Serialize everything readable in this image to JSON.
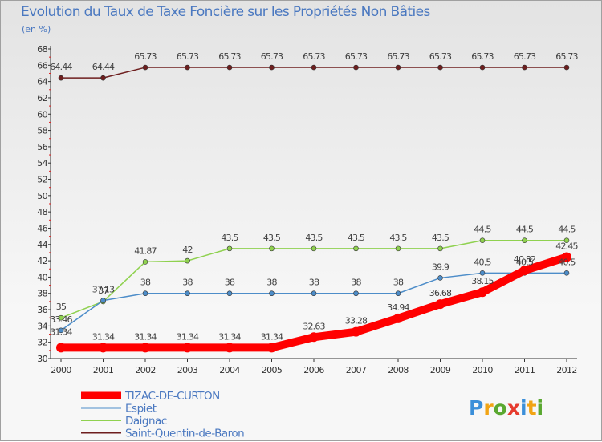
{
  "chart_data": {
    "type": "line",
    "title": "Evolution du Taux de Taxe Foncière sur les Propriétés Non Bâties",
    "unit_label": "(en %)",
    "x": [
      "2000",
      "2001",
      "2002",
      "2003",
      "2004",
      "2005",
      "2006",
      "2007",
      "2008",
      "2009",
      "2010",
      "2011",
      "2012"
    ],
    "ylim": [
      30,
      68
    ],
    "yticks": [
      30,
      32,
      34,
      36,
      38,
      40,
      42,
      44,
      46,
      48,
      50,
      52,
      54,
      56,
      58,
      60,
      62,
      64,
      66,
      68
    ],
    "grid": false,
    "legend_position": "bottom-left",
    "series": [
      {
        "name": "TIZAC-DE-CURTON",
        "color": "#ff0000",
        "values": [
          31.34,
          31.34,
          31.34,
          31.34,
          31.34,
          31.34,
          32.63,
          33.28,
          34.94,
          36.68,
          38.15,
          40.82,
          42.45
        ],
        "labels": [
          "31.34",
          "31.34",
          "31.34",
          "31.34",
          "31.34",
          "31.34",
          "32.63",
          "33.28",
          "34.94",
          "36.68",
          "38.15",
          "40.82",
          "42.45"
        ]
      },
      {
        "name": "Espiet",
        "color": "#4d8dc9",
        "values": [
          33.46,
          37.13,
          38,
          38,
          38,
          38,
          38,
          38,
          38,
          39.9,
          40.5,
          40.5,
          40.5
        ],
        "labels": [
          "33.46",
          "37.13",
          "38",
          "38",
          "38",
          "38",
          "38",
          "38",
          "38",
          "39.9",
          "40.5",
          "40.5",
          "40.5"
        ]
      },
      {
        "name": "Daignac",
        "color": "#8fd14f",
        "values": [
          35,
          37,
          41.87,
          42,
          43.5,
          43.5,
          43.5,
          43.5,
          43.5,
          43.5,
          44.5,
          44.5,
          44.5
        ],
        "labels": [
          "35",
          "37",
          "41.87",
          "42",
          "43.5",
          "43.5",
          "43.5",
          "43.5",
          "43.5",
          "43.5",
          "44.5",
          "44.5",
          "44.5"
        ]
      },
      {
        "name": "Saint-Quentin-de-Baron",
        "color": "#6e1e1e",
        "values": [
          64.44,
          64.44,
          65.73,
          65.73,
          65.73,
          65.73,
          65.73,
          65.73,
          65.73,
          65.73,
          65.73,
          65.73,
          65.73
        ],
        "labels": [
          "64.44",
          "64.44",
          "65.73",
          "65.73",
          "65.73",
          "65.73",
          "65.73",
          "65.73",
          "65.73",
          "65.73",
          "65.73",
          "65.73",
          "65.73"
        ]
      }
    ]
  },
  "logo": {
    "text": "Proxiti",
    "colors": [
      "#3b8fd9",
      "#f2a414",
      "#5aa830",
      "#e63b2e",
      "#3b8fd9",
      "#f2a414",
      "#5aa830"
    ]
  }
}
